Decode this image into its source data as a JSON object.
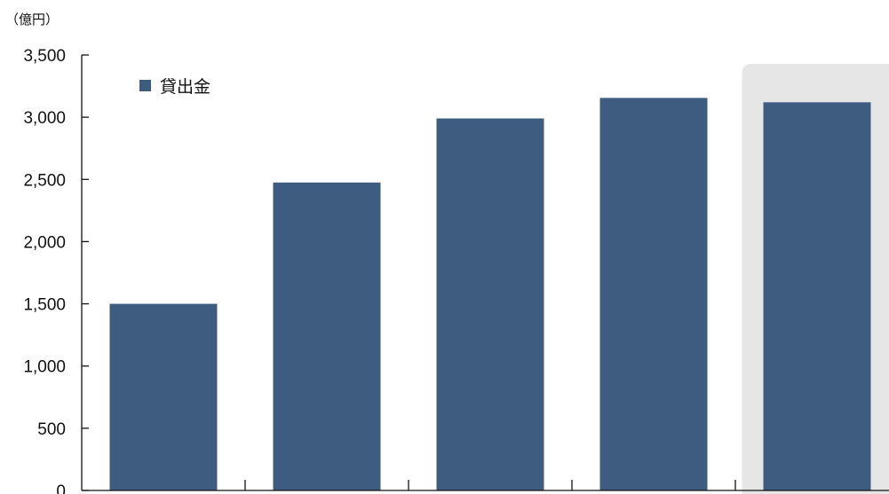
{
  "chart_data": {
    "type": "bar",
    "unit_label": "（億円）",
    "categories": [
      "",
      "",
      "",
      "",
      ""
    ],
    "series": [
      {
        "name": "貸出金",
        "values": [
          1500,
          2475,
          2990,
          3155,
          3120
        ],
        "color": "#3e5c80"
      }
    ],
    "ylim": [
      0,
      3500
    ],
    "yticks": [
      0,
      500,
      1000,
      1500,
      2000,
      2500,
      3000,
      3500
    ],
    "ytick_labels": [
      "0",
      "500",
      "1,000",
      "1,500",
      "2,000",
      "2,500",
      "3,000",
      "3,500"
    ],
    "highlight_category_index": 4,
    "highlight_color": "#e6e6e6",
    "legend_position": "top-left",
    "grid": false
  }
}
